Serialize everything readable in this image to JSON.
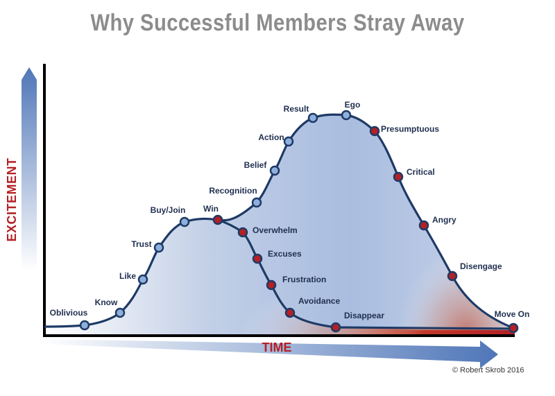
{
  "title": "Why Successful Members Stray Away",
  "y_axis_label": "EXCITEMENT",
  "x_axis_label": "TIME",
  "copyright": "© Robert Skrob 2016",
  "colors": {
    "rising": "#8fb0dc",
    "declining": "#b32025",
    "curve": "#1e3a66",
    "title": "#8c8c8c"
  },
  "stages": [
    {
      "label": "Oblivious",
      "phase": "rising"
    },
    {
      "label": "Know",
      "phase": "rising"
    },
    {
      "label": "Like",
      "phase": "rising"
    },
    {
      "label": "Trust",
      "phase": "rising"
    },
    {
      "label": "Buy/Join",
      "phase": "rising"
    },
    {
      "label": "Win",
      "phase": "declining"
    },
    {
      "label": "Overwhelm",
      "phase": "declining"
    },
    {
      "label": "Excuses",
      "phase": "declining"
    },
    {
      "label": "Frustration",
      "phase": "declining"
    },
    {
      "label": "Avoidance",
      "phase": "declining"
    },
    {
      "label": "Disappear",
      "phase": "declining"
    },
    {
      "label": "Recognition",
      "phase": "rising"
    },
    {
      "label": "Belief",
      "phase": "rising"
    },
    {
      "label": "Action",
      "phase": "rising"
    },
    {
      "label": "Result",
      "phase": "rising"
    },
    {
      "label": "Ego",
      "phase": "rising"
    },
    {
      "label": "Presumptuous",
      "phase": "declining"
    },
    {
      "label": "Critical",
      "phase": "declining"
    },
    {
      "label": "Angry",
      "phase": "declining"
    },
    {
      "label": "Disengage",
      "phase": "declining"
    },
    {
      "label": "Move On",
      "phase": "declining"
    }
  ]
}
